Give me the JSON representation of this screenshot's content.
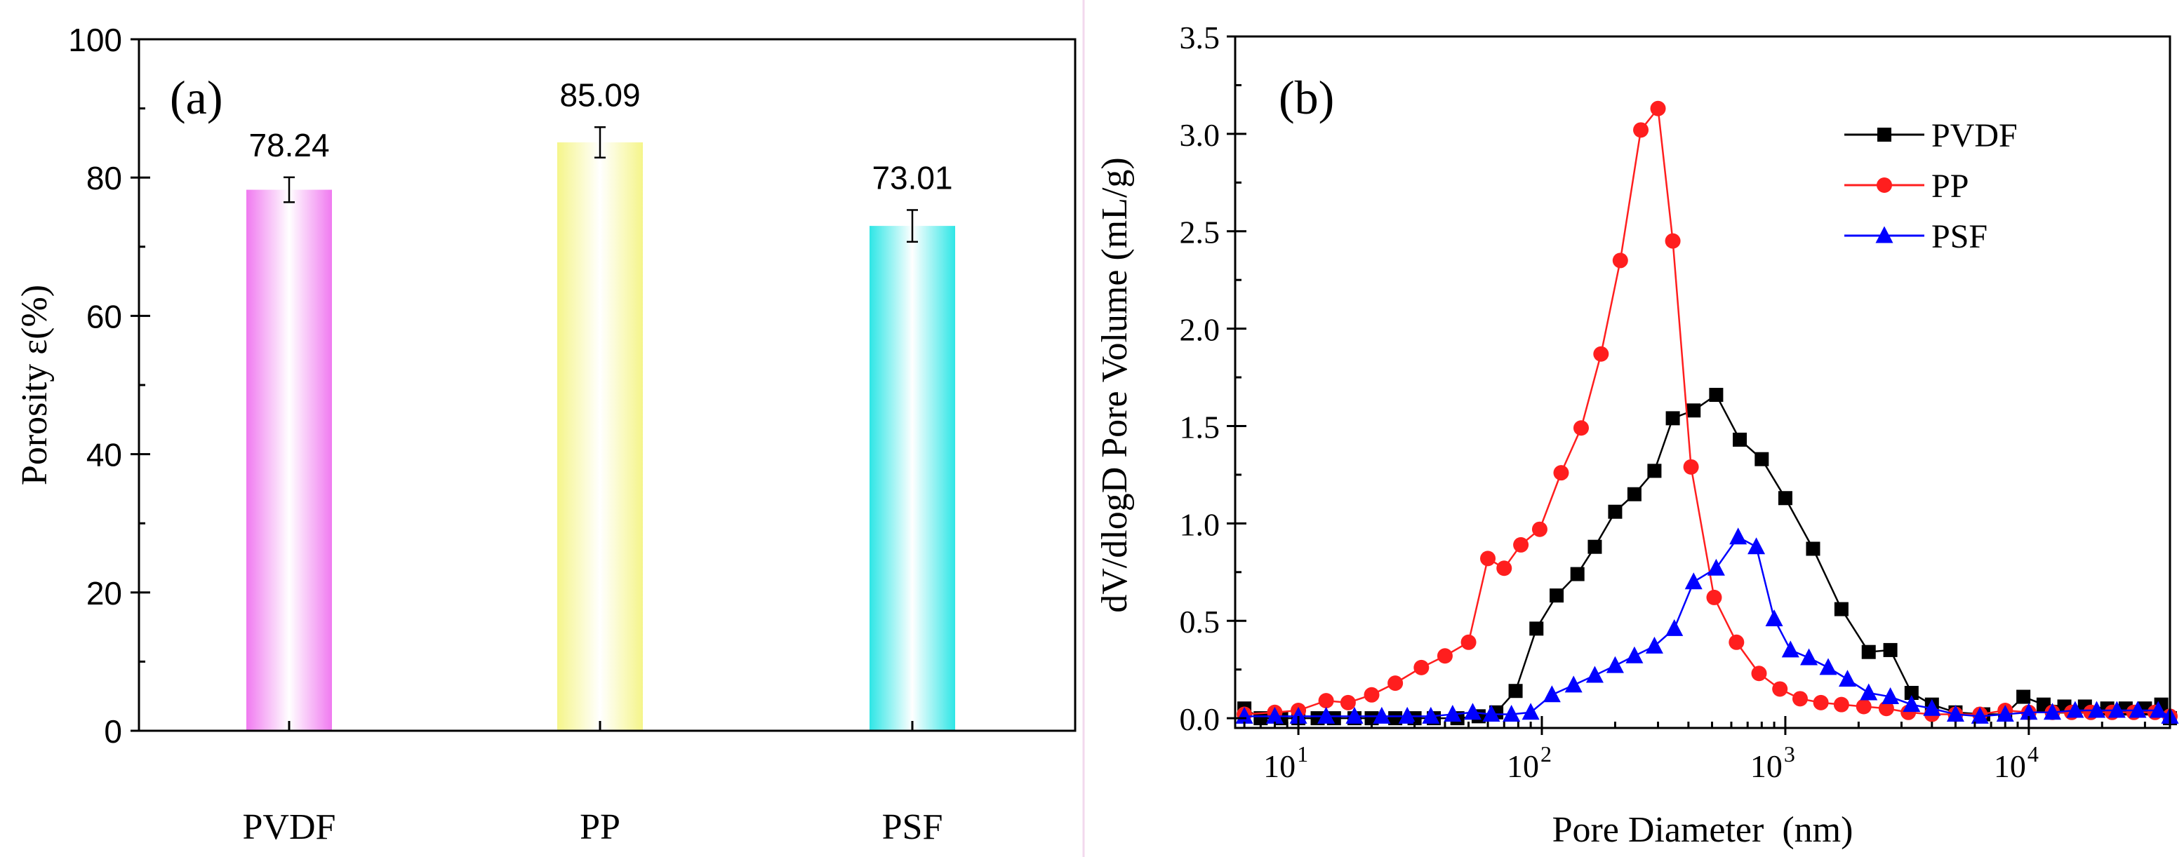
{
  "chart_data": [
    {
      "type": "bar",
      "panel_label": "(a)",
      "categories": [
        "PVDF",
        "PP",
        "PSF"
      ],
      "values": [
        78.24,
        85.09,
        73.01
      ],
      "value_labels": [
        "78.24",
        "85.09",
        "73.01"
      ],
      "errors": [
        1.8,
        2.2,
        2.3
      ],
      "ylabel": "Porosity ε(%)",
      "xlabel": "",
      "ylim": [
        0,
        100
      ],
      "yticks": [
        0,
        20,
        40,
        60,
        80,
        100
      ],
      "ytick_labels": [
        "0",
        "20",
        "40",
        "60",
        "80",
        "100"
      ],
      "bar_colors": [
        "#f07af0",
        "#f5f58a",
        "#2ee6e6"
      ]
    },
    {
      "type": "line",
      "panel_label": "(b)",
      "xscale": "log",
      "xlabel": "Pore Diameter  (nm)",
      "ylabel": "dV/dlogD Pore Volume  (mL/g)",
      "xlim": [
        5.5,
        38000
      ],
      "ylim": [
        -0.05,
        3.5
      ],
      "yticks": [
        0.0,
        0.5,
        1.0,
        1.5,
        2.0,
        2.5,
        3.0,
        3.5
      ],
      "ytick_labels": [
        "0.0",
        "0.5",
        "1.0",
        "1.5",
        "2.0",
        "2.5",
        "3.0",
        "3.5"
      ],
      "xtick_bases": [
        "10",
        "10",
        "10",
        "10"
      ],
      "xtick_exps": [
        "1",
        "2",
        "3",
        "4"
      ],
      "xtick_values": [
        10,
        100,
        1000,
        10000
      ],
      "legend_position": "top-right",
      "series": [
        {
          "name": "PVDF",
          "color": "#000000",
          "marker": "square",
          "x": [
            6,
            7,
            8.5,
            10,
            12,
            14,
            17,
            20,
            25,
            30,
            36,
            45,
            55,
            65,
            78,
            95,
            115,
            140,
            165,
            200,
            240,
            290,
            345,
            420,
            520,
            650,
            800,
            1000,
            1300,
            1700,
            2200,
            2700,
            3300,
            4000,
            5000,
            6500,
            8000,
            9500,
            11500,
            14000,
            17000,
            21000,
            25000,
            30000,
            35000,
            38000
          ],
          "y": [
            0.05,
            0,
            0,
            0,
            0,
            0,
            0,
            0,
            0,
            0,
            0,
            0,
            0.01,
            0.03,
            0.14,
            0.46,
            0.63,
            0.74,
            0.88,
            1.06,
            1.15,
            1.27,
            1.54,
            1.58,
            1.66,
            1.43,
            1.33,
            1.13,
            0.87,
            0.56,
            0.34,
            0.35,
            0.13,
            0.07,
            0.03,
            0.02,
            0.02,
            0.11,
            0.07,
            0.06,
            0.06,
            0.05,
            0.05,
            0.05,
            0.07,
            0
          ]
        },
        {
          "name": "PP",
          "color": "#ff1e1e",
          "marker": "circle",
          "x": [
            6,
            8,
            10,
            13,
            16,
            20,
            25,
            32,
            40,
            50,
            60,
            70,
            82,
            98,
            120,
            145,
            175,
            210,
            255,
            300,
            345,
            410,
            510,
            630,
            780,
            950,
            1150,
            1400,
            1700,
            2100,
            2600,
            3200,
            4000,
            5000,
            6300,
            8000,
            10000,
            12500,
            15000,
            18000,
            22000,
            27000,
            33000,
            38000
          ],
          "y": [
            0.02,
            0.03,
            0.04,
            0.09,
            0.08,
            0.12,
            0.18,
            0.26,
            0.32,
            0.39,
            0.82,
            0.77,
            0.89,
            0.97,
            1.26,
            1.49,
            1.87,
            2.35,
            3.02,
            3.13,
            2.45,
            1.29,
            0.62,
            0.39,
            0.23,
            0.15,
            0.1,
            0.08,
            0.07,
            0.06,
            0.05,
            0.03,
            0.02,
            0.02,
            0.02,
            0.04,
            0.03,
            0.03,
            0.03,
            0.03,
            0.03,
            0.03,
            0.03,
            0.01
          ]
        },
        {
          "name": "PSF",
          "color": "#0000ff",
          "marker": "triangle",
          "x": [
            6,
            8,
            10,
            13,
            17,
            22,
            28,
            35,
            43,
            52,
            62,
            75,
            90,
            110,
            135,
            165,
            200,
            240,
            290,
            350,
            420,
            520,
            640,
            760,
            900,
            1050,
            1250,
            1500,
            1800,
            2200,
            2700,
            3300,
            4000,
            5000,
            6300,
            8000,
            10000,
            12500,
            15500,
            19000,
            23000,
            28000,
            34000,
            38000
          ],
          "y": [
            0.01,
            0.01,
            0.01,
            0.01,
            0.01,
            0.01,
            0.01,
            0.01,
            0.02,
            0.03,
            0.02,
            0.02,
            0.03,
            0.12,
            0.17,
            0.22,
            0.27,
            0.32,
            0.37,
            0.46,
            0.7,
            0.77,
            0.93,
            0.88,
            0.51,
            0.35,
            0.31,
            0.26,
            0.2,
            0.13,
            0.11,
            0.07,
            0.05,
            0.02,
            0.01,
            0.02,
            0.03,
            0.03,
            0.04,
            0.04,
            0.04,
            0.04,
            0.04,
            0.01
          ]
        }
      ]
    }
  ]
}
